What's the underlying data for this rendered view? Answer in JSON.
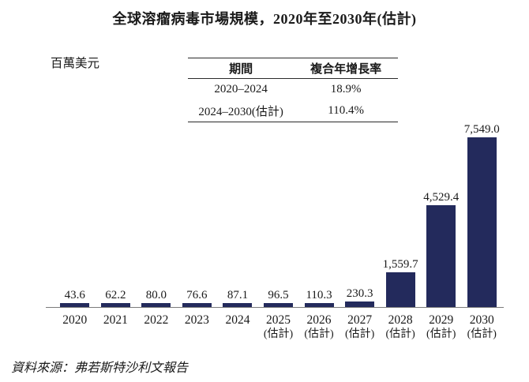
{
  "page": {
    "title": "全球溶瘤病毒市場規模，2020年至2030年(估計)",
    "unit_label": "百萬美元",
    "source": "資料來源：弗若斯特沙利文報告"
  },
  "cagr_table": {
    "col_period": "期間",
    "col_cagr": "複合年增長率",
    "rows": [
      {
        "period": "2020–2024",
        "cagr": "18.9%"
      },
      {
        "period": "2024–2030(估計)",
        "cagr": "110.4%"
      }
    ]
  },
  "colors": {
    "bar": "#232a5c",
    "axis": "#7b7b7b",
    "text": "#1a1a1a"
  },
  "chart_data": {
    "type": "bar",
    "title": "全球溶瘤病毒市場規模，2020年至2030年(估計)",
    "ylabel": "百萬美元",
    "xlabel": "",
    "ylim": [
      0,
      7549
    ],
    "grid": false,
    "legend": false,
    "categories": [
      "2020",
      "2021",
      "2022",
      "2023",
      "2024",
      "2025(估計)",
      "2026(估計)",
      "2027(估計)",
      "2028(估計)",
      "2029(估計)",
      "2030(估計)"
    ],
    "values": [
      43.6,
      62.2,
      80.0,
      76.6,
      87.1,
      96.5,
      110.3,
      230.3,
      1559.7,
      4529.4,
      7549.0
    ],
    "value_labels": [
      "43.6",
      "62.2",
      "80.0",
      "76.6",
      "87.1",
      "96.5",
      "110.3",
      "230.3",
      "1,559.7",
      "4,529.4",
      "7,549.0"
    ],
    "x_labels": [
      {
        "year": "2020",
        "note": ""
      },
      {
        "year": "2021",
        "note": ""
      },
      {
        "year": "2022",
        "note": ""
      },
      {
        "year": "2023",
        "note": ""
      },
      {
        "year": "2024",
        "note": ""
      },
      {
        "year": "2025",
        "note": "(估計)"
      },
      {
        "year": "2026",
        "note": "(估計)"
      },
      {
        "year": "2027",
        "note": "(估計)"
      },
      {
        "year": "2028",
        "note": "(估計)"
      },
      {
        "year": "2029",
        "note": "(估計)"
      },
      {
        "year": "2030",
        "note": "(估計)"
      }
    ],
    "annotations": {
      "cagr_2020_2024": "18.9%",
      "cagr_2024_2030_est": "110.4%"
    }
  }
}
